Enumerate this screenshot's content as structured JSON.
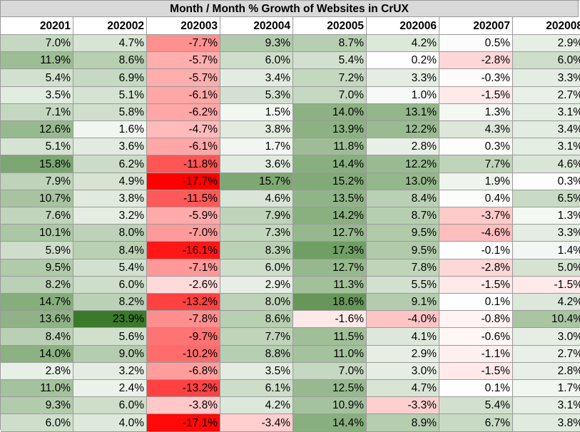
{
  "chart_data": {
    "type": "table",
    "title": "Month / Month % Growth of Websites in CrUX",
    "columns": [
      "20201",
      "202002",
      "202003",
      "202004",
      "202005",
      "202006",
      "202007",
      "202008"
    ],
    "rows": [
      [
        7.0,
        4.7,
        -7.7,
        9.3,
        8.7,
        4.2,
        0.5,
        2.9
      ],
      [
        11.9,
        8.6,
        -5.7,
        6.0,
        5.4,
        0.2,
        -2.8,
        6.0
      ],
      [
        5.4,
        6.9,
        -5.7,
        3.4,
        7.2,
        3.3,
        -0.3,
        3.3
      ],
      [
        3.5,
        5.1,
        -6.1,
        5.3,
        7.0,
        1.0,
        -1.5,
        2.7
      ],
      [
        7.1,
        5.8,
        -6.2,
        1.5,
        14.0,
        13.1,
        1.3,
        3.1
      ],
      [
        12.6,
        1.6,
        -4.7,
        3.8,
        13.9,
        12.2,
        4.3,
        3.4
      ],
      [
        5.1,
        3.6,
        -6.1,
        1.7,
        11.8,
        2.8,
        0.3,
        3.1
      ],
      [
        15.8,
        6.2,
        -11.8,
        3.6,
        14.4,
        12.2,
        7.7,
        4.6
      ],
      [
        7.9,
        4.9,
        -17.7,
        15.7,
        15.2,
        13.0,
        1.9,
        0.3
      ],
      [
        10.7,
        3.8,
        -11.5,
        4.6,
        13.5,
        8.4,
        0.4,
        6.5
      ],
      [
        7.6,
        3.2,
        -5.9,
        7.9,
        14.2,
        8.7,
        -3.7,
        1.3
      ],
      [
        10.1,
        8.0,
        -7.0,
        7.3,
        12.7,
        9.5,
        -4.6,
        3.3
      ],
      [
        5.9,
        8.4,
        -16.1,
        8.3,
        17.3,
        9.5,
        -0.1,
        1.4
      ],
      [
        9.5,
        5.4,
        -7.1,
        6.0,
        12.7,
        7.8,
        -2.8,
        5.0
      ],
      [
        8.2,
        6.0,
        -2.6,
        2.9,
        11.3,
        5.5,
        -1.5,
        -1.5
      ],
      [
        14.7,
        8.2,
        -13.2,
        8.0,
        18.6,
        9.1,
        0.1,
        4.2
      ],
      [
        13.6,
        23.9,
        -7.8,
        8.6,
        -1.6,
        -4.0,
        -0.8,
        10.4
      ],
      [
        8.4,
        5.6,
        -9.7,
        7.7,
        11.5,
        4.1,
        -0.6,
        3.0
      ],
      [
        14.0,
        9.0,
        -10.2,
        8.8,
        11.0,
        2.9,
        -1.1,
        2.7
      ],
      [
        2.8,
        3.2,
        -6.8,
        3.5,
        7.0,
        3.0,
        -1.5,
        2.8
      ],
      [
        11.0,
        2.4,
        -13.2,
        6.1,
        12.5,
        4.7,
        0.1,
        1.7
      ],
      [
        9.3,
        6.0,
        -3.8,
        4.2,
        10.9,
        -3.3,
        5.4,
        3.1
      ],
      [
        6.0,
        4.0,
        -17.1,
        -3.4,
        14.4,
        8.9,
        6.7,
        3.8
      ]
    ],
    "unit": "%",
    "colors": {
      "header_bg": "#d9d9d9",
      "neutral": "#ffffff",
      "positive_max": "#3a7a2a",
      "negative_max": "#ff0000"
    }
  }
}
